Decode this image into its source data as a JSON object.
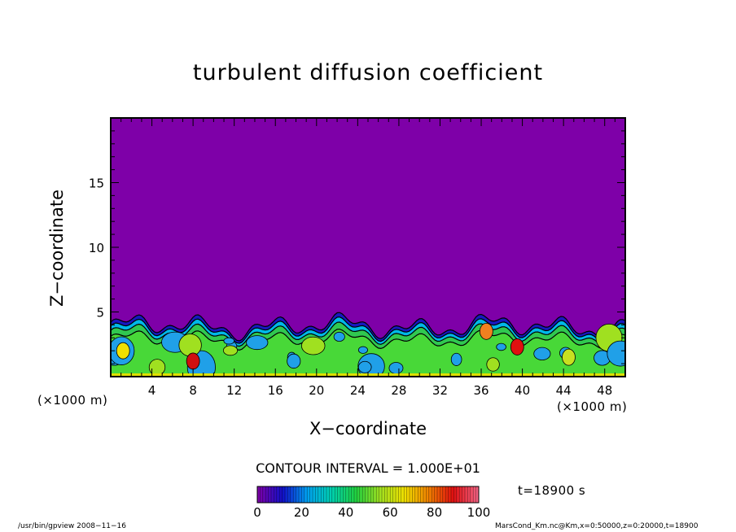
{
  "chart_data": {
    "type": "heatmap",
    "title": "turbulent diffusion coefficient",
    "xlabel": "X−coordinate",
    "ylabel": "Z−coordinate",
    "x_unit_left": "(×1000 m)",
    "x_unit_right": "(×1000 m)",
    "xlim": [
      0,
      50
    ],
    "ylim": [
      0,
      20
    ],
    "xticks": [
      "4",
      "8",
      "12",
      "16",
      "20",
      "24",
      "28",
      "32",
      "36",
      "40",
      "44",
      "48"
    ],
    "yticks": [
      "5",
      "10",
      "15"
    ],
    "contour_interval": "CONTOUR INTERVAL = 1.000E+01",
    "time_label": "t=18900 s",
    "colorbar": {
      "ticks": [
        "0",
        "20",
        "40",
        "60",
        "80",
        "100"
      ],
      "min": 0,
      "max": 100,
      "colors": [
        "#7a00a8",
        "#1010c8",
        "#00a0f0",
        "#00d0b0",
        "#20d040",
        "#a0e020",
        "#f0e000",
        "#f08000",
        "#e01010",
        "#f06080"
      ]
    },
    "background_color": "#7e00a8",
    "mixed_layer_top_approx": 4.5
  },
  "footer": {
    "left": "/usr/bin/gpview   2008−11−16",
    "right": "MarsCond_Km.nc@Km,x=0:50000,z=0:20000,t=18900"
  }
}
